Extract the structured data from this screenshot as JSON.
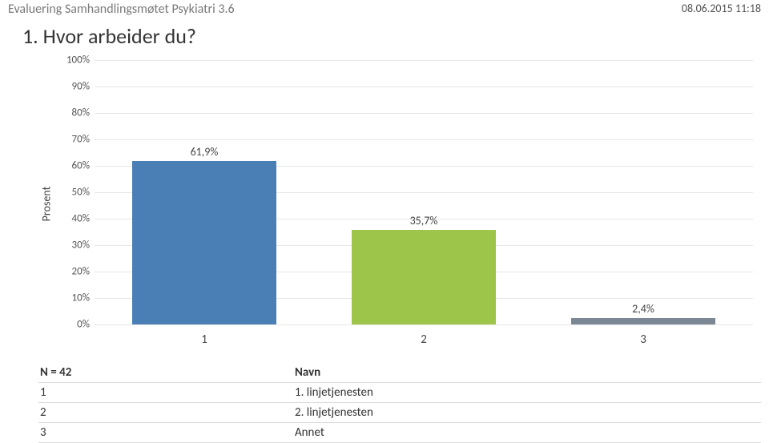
{
  "header": {
    "doc_title": "Evaluering Samhandlingsmøtet Psykiatri 3.6",
    "timestamp": "08.06.2015 11:18"
  },
  "question": "1. Hvor arbeider du?",
  "chart": {
    "type": "bar",
    "y_axis_label": "Prosent",
    "ylim": [
      0,
      100
    ],
    "ytick_step": 10,
    "ytick_suffix": "%",
    "grid_color": "#e6e6e6",
    "background_color": "#ffffff",
    "bar_width_pct": 66,
    "label_fontsize": 14,
    "tick_fontsize": 13,
    "categories": [
      "1",
      "2",
      "3"
    ],
    "values": [
      61.9,
      35.7,
      2.4
    ],
    "value_labels": [
      "61,9%",
      "35,7%",
      "2,4%"
    ],
    "bar_colors": [
      "#4a7fb5",
      "#9cc54a",
      "#7c8796"
    ]
  },
  "table": {
    "header_left": "N = 42",
    "header_right": "Navn",
    "rows": [
      {
        "key": "1",
        "name": "1. linjetjenesten"
      },
      {
        "key": "2",
        "name": "2. linjetjenesten"
      },
      {
        "key": "3",
        "name": "Annet"
      }
    ]
  }
}
